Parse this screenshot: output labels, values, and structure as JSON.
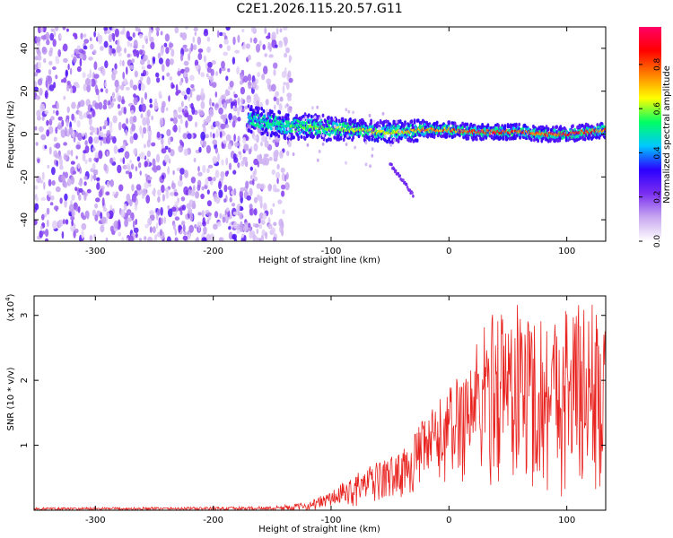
{
  "figure_title": "C2E1.2026.115.20.57.G11",
  "chart_data": [
    {
      "type": "heatmap",
      "xlabel": "Height of straight line (km)",
      "ylabel": "Frequency (Hz)",
      "xlim": [
        -352,
        133
      ],
      "ylim": [
        -50,
        50
      ],
      "xticks": [
        -300,
        -200,
        -100,
        0,
        100
      ],
      "xtick_labels": [
        "-300",
        "-200",
        "-100",
        "0",
        "100"
      ],
      "yticks": [
        -40,
        -20,
        0,
        20,
        40
      ],
      "ytick_labels": [
        "-40",
        "-20",
        "0",
        "20",
        "40"
      ],
      "noise_region_xlim": [
        -352,
        -142
      ],
      "signal_track": {
        "x": [
          -170,
          -140,
          -110,
          -80,
          -60,
          -40,
          -20,
          0,
          20,
          40,
          60,
          80,
          100,
          133
        ],
        "freq": [
          7,
          4,
          3,
          2,
          1,
          1,
          2,
          2,
          1,
          1,
          1,
          0,
          0,
          2
        ],
        "intensity": [
          0.45,
          0.55,
          0.6,
          0.65,
          0.7,
          0.7,
          0.75,
          0.8,
          0.9,
          0.9,
          0.85,
          0.85,
          0.9,
          0.8
        ]
      },
      "secondary_streak": {
        "x": [
          -50,
          -40,
          -30
        ],
        "freq": [
          -14,
          -21,
          -29
        ]
      },
      "colorbar": {
        "label": "Normalized spectral amplitude",
        "range": [
          0,
          0.97
        ],
        "ticks": [
          0.0,
          0.2,
          0.4,
          0.6,
          0.8
        ],
        "tick_labels": [
          "0.0",
          "0.2",
          "0.4",
          "0.6",
          "0.8"
        ],
        "colors": [
          "#ffffff",
          "#c8a8f0",
          "#7b2ff0",
          "#2b00ff",
          "#00c8ff",
          "#00ff64",
          "#ffff00",
          "#ff8000",
          "#ff0000",
          "#ff0066"
        ]
      }
    },
    {
      "type": "line",
      "xlabel": "Height of straight line (km)",
      "ylabel": "SNR (10 * v/v)",
      "y_multiplier": "(x10",
      "y_multiplier_exp": "4",
      "y_multiplier_close": ")",
      "xlim": [
        -352,
        133
      ],
      "ylim": [
        0,
        3.3
      ],
      "xticks": [
        -300,
        -200,
        -100,
        0,
        100
      ],
      "xtick_labels": [
        "-300",
        "-200",
        "-100",
        "0",
        "100"
      ],
      "yticks": [
        1,
        2,
        3
      ],
      "ytick_labels": [
        "1",
        "2",
        "3"
      ],
      "series": [
        {
          "name": "SNR",
          "color": "#e8231f",
          "envelope_x": [
            -352,
            -200,
            -150,
            -120,
            -100,
            -80,
            -60,
            -40,
            -20,
            0,
            20,
            40,
            60,
            80,
            100,
            120,
            133
          ],
          "envelope_max": [
            0.04,
            0.05,
            0.06,
            0.12,
            0.3,
            0.55,
            0.75,
            0.9,
            1.45,
            1.9,
            2.55,
            3.2,
            3.2,
            3.0,
            3.2,
            3.3,
            2.8
          ],
          "envelope_min": [
            0.0,
            0.0,
            0.0,
            0.0,
            0.02,
            0.05,
            0.1,
            0.2,
            0.3,
            0.4,
            0.35,
            0.3,
            0.25,
            0.2,
            0.2,
            0.1,
            0.1
          ]
        }
      ]
    }
  ]
}
